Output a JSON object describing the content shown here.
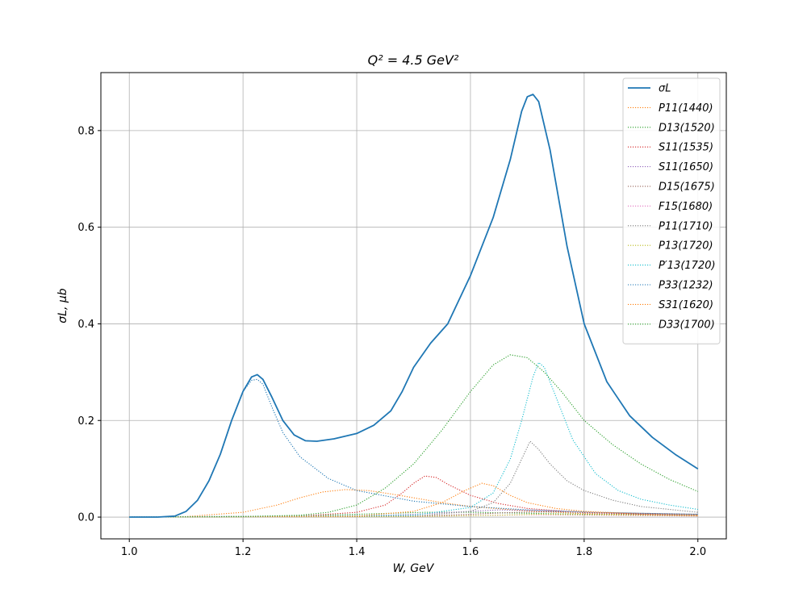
{
  "chart_data": {
    "type": "line",
    "title": "Q² = 4.5 GeV²",
    "xlabel": "W, GeV",
    "ylabel": "σL, μb",
    "xlim": [
      0.95,
      2.05
    ],
    "ylim": [
      -0.045,
      0.92
    ],
    "xticks": [
      "1.0",
      "1.2",
      "1.4",
      "1.6",
      "1.8",
      "2.0"
    ],
    "yticks": [
      "0.0",
      "0.2",
      "0.4",
      "0.6",
      "0.8"
    ],
    "grid": true,
    "legend_position": "top-right",
    "series": [
      {
        "name": "σL",
        "color": "#1f77b4",
        "style": "solid",
        "points": [
          [
            1.0,
            0
          ],
          [
            1.05,
            0
          ],
          [
            1.08,
            0.002
          ],
          [
            1.1,
            0.012
          ],
          [
            1.12,
            0.035
          ],
          [
            1.14,
            0.075
          ],
          [
            1.16,
            0.13
          ],
          [
            1.18,
            0.2
          ],
          [
            1.2,
            0.26
          ],
          [
            1.215,
            0.29
          ],
          [
            1.225,
            0.295
          ],
          [
            1.235,
            0.285
          ],
          [
            1.25,
            0.25
          ],
          [
            1.27,
            0.2
          ],
          [
            1.29,
            0.17
          ],
          [
            1.31,
            0.158
          ],
          [
            1.33,
            0.157
          ],
          [
            1.36,
            0.162
          ],
          [
            1.4,
            0.173
          ],
          [
            1.43,
            0.19
          ],
          [
            1.46,
            0.22
          ],
          [
            1.48,
            0.26
          ],
          [
            1.5,
            0.31
          ],
          [
            1.53,
            0.36
          ],
          [
            1.56,
            0.4
          ],
          [
            1.6,
            0.5
          ],
          [
            1.64,
            0.62
          ],
          [
            1.67,
            0.74
          ],
          [
            1.69,
            0.84
          ],
          [
            1.7,
            0.87
          ],
          [
            1.71,
            0.875
          ],
          [
            1.72,
            0.86
          ],
          [
            1.74,
            0.76
          ],
          [
            1.77,
            0.56
          ],
          [
            1.8,
            0.4
          ],
          [
            1.84,
            0.28
          ],
          [
            1.88,
            0.21
          ],
          [
            1.92,
            0.165
          ],
          [
            1.96,
            0.13
          ],
          [
            2.0,
            0.1
          ]
        ]
      },
      {
        "name": "P11(1440)",
        "color": "#ff7f0e",
        "style": "dotted",
        "points": [
          [
            1.0,
            0
          ],
          [
            1.1,
            0.001
          ],
          [
            1.2,
            0.01
          ],
          [
            1.26,
            0.025
          ],
          [
            1.3,
            0.04
          ],
          [
            1.34,
            0.052
          ],
          [
            1.38,
            0.057
          ],
          [
            1.42,
            0.055
          ],
          [
            1.46,
            0.048
          ],
          [
            1.5,
            0.04
          ],
          [
            1.55,
            0.03
          ],
          [
            1.6,
            0.022
          ],
          [
            1.7,
            0.013
          ],
          [
            1.8,
            0.007
          ],
          [
            2.0,
            0.003
          ]
        ]
      },
      {
        "name": "D13(1520)",
        "color": "#2ca02c",
        "style": "dotted",
        "points": [
          [
            1.0,
            0
          ],
          [
            1.2,
            0.001
          ],
          [
            1.3,
            0.003
          ],
          [
            1.4,
            0.006
          ],
          [
            1.46,
            0.008
          ],
          [
            1.52,
            0.01
          ],
          [
            1.6,
            0.01
          ],
          [
            1.7,
            0.008
          ],
          [
            1.8,
            0.006
          ],
          [
            2.0,
            0.003
          ]
        ]
      },
      {
        "name": "S11(1535)",
        "color": "#d62728",
        "style": "dotted",
        "points": [
          [
            1.0,
            0
          ],
          [
            1.3,
            0.002
          ],
          [
            1.4,
            0.01
          ],
          [
            1.45,
            0.025
          ],
          [
            1.48,
            0.05
          ],
          [
            1.5,
            0.07
          ],
          [
            1.52,
            0.085
          ],
          [
            1.54,
            0.082
          ],
          [
            1.56,
            0.068
          ],
          [
            1.6,
            0.045
          ],
          [
            1.65,
            0.028
          ],
          [
            1.7,
            0.018
          ],
          [
            1.8,
            0.009
          ],
          [
            2.0,
            0.004
          ]
        ]
      },
      {
        "name": "S11(1650)",
        "color": "#9467bd",
        "style": "dotted",
        "points": [
          [
            1.0,
            0
          ],
          [
            1.4,
            0.002
          ],
          [
            1.5,
            0.006
          ],
          [
            1.6,
            0.012
          ],
          [
            1.65,
            0.015
          ],
          [
            1.7,
            0.014
          ],
          [
            1.8,
            0.01
          ],
          [
            1.9,
            0.006
          ],
          [
            2.0,
            0.004
          ]
        ]
      },
      {
        "name": "D15(1675)",
        "color": "#8c564b",
        "style": "dotted",
        "points": [
          [
            1.0,
            0
          ],
          [
            1.5,
            0.002
          ],
          [
            1.6,
            0.006
          ],
          [
            1.68,
            0.01
          ],
          [
            1.75,
            0.011
          ],
          [
            1.85,
            0.009
          ],
          [
            2.0,
            0.006
          ]
        ]
      },
      {
        "name": "F15(1680)",
        "color": "#e377c2",
        "style": "dotted",
        "points": [
          [
            1.0,
            0
          ],
          [
            1.5,
            0.001
          ],
          [
            1.6,
            0.003
          ],
          [
            1.7,
            0.005
          ],
          [
            1.8,
            0.004
          ],
          [
            2.0,
            0.002
          ]
        ]
      },
      {
        "name": "P11(1710)",
        "color": "#7f7f7f",
        "style": "dotted",
        "points": [
          [
            1.0,
            0
          ],
          [
            1.5,
            0.002
          ],
          [
            1.6,
            0.012
          ],
          [
            1.64,
            0.03
          ],
          [
            1.67,
            0.07
          ],
          [
            1.69,
            0.12
          ],
          [
            1.705,
            0.157
          ],
          [
            1.72,
            0.14
          ],
          [
            1.74,
            0.11
          ],
          [
            1.77,
            0.075
          ],
          [
            1.8,
            0.055
          ],
          [
            1.85,
            0.035
          ],
          [
            1.9,
            0.022
          ],
          [
            2.0,
            0.01
          ]
        ]
      },
      {
        "name": "P13(1720)",
        "color": "#bcbd22",
        "style": "dotted",
        "points": [
          [
            1.0,
            0
          ],
          [
            1.5,
            0.001
          ],
          [
            1.65,
            0.004
          ],
          [
            1.72,
            0.006
          ],
          [
            1.8,
            0.005
          ],
          [
            2.0,
            0.003
          ]
        ]
      },
      {
        "name": "P′13(1720)",
        "color": "#17becf",
        "style": "dotted",
        "points": [
          [
            1.0,
            0
          ],
          [
            1.5,
            0.004
          ],
          [
            1.6,
            0.02
          ],
          [
            1.64,
            0.05
          ],
          [
            1.67,
            0.12
          ],
          [
            1.69,
            0.2
          ],
          [
            1.71,
            0.29
          ],
          [
            1.72,
            0.32
          ],
          [
            1.73,
            0.31
          ],
          [
            1.75,
            0.25
          ],
          [
            1.78,
            0.16
          ],
          [
            1.82,
            0.09
          ],
          [
            1.86,
            0.055
          ],
          [
            1.9,
            0.037
          ],
          [
            1.95,
            0.025
          ],
          [
            2.0,
            0.016
          ]
        ]
      },
      {
        "name": "P33(1232)",
        "color": "#1f77b4",
        "style": "dotted",
        "points": [
          [
            1.0,
            0
          ],
          [
            1.05,
            0
          ],
          [
            1.08,
            0.002
          ],
          [
            1.1,
            0.012
          ],
          [
            1.12,
            0.035
          ],
          [
            1.14,
            0.075
          ],
          [
            1.16,
            0.13
          ],
          [
            1.18,
            0.2
          ],
          [
            1.2,
            0.26
          ],
          [
            1.215,
            0.283
          ],
          [
            1.225,
            0.285
          ],
          [
            1.235,
            0.275
          ],
          [
            1.25,
            0.23
          ],
          [
            1.27,
            0.175
          ],
          [
            1.3,
            0.125
          ],
          [
            1.35,
            0.08
          ],
          [
            1.4,
            0.055
          ],
          [
            1.5,
            0.033
          ],
          [
            1.6,
            0.022
          ],
          [
            1.7,
            0.015
          ],
          [
            1.8,
            0.011
          ],
          [
            1.9,
            0.008
          ],
          [
            2.0,
            0.006
          ]
        ]
      },
      {
        "name": "S31(1620)",
        "color": "#ff7f0e",
        "style": "dotted",
        "points": [
          [
            1.0,
            0
          ],
          [
            1.4,
            0.002
          ],
          [
            1.5,
            0.012
          ],
          [
            1.55,
            0.03
          ],
          [
            1.59,
            0.055
          ],
          [
            1.62,
            0.07
          ],
          [
            1.64,
            0.065
          ],
          [
            1.67,
            0.045
          ],
          [
            1.7,
            0.03
          ],
          [
            1.75,
            0.018
          ],
          [
            1.8,
            0.012
          ],
          [
            1.9,
            0.006
          ],
          [
            2.0,
            0.003
          ]
        ]
      },
      {
        "name": "D33(1700)",
        "color": "#2ca02c",
        "style": "dotted",
        "points": [
          [
            1.0,
            0
          ],
          [
            1.2,
            0.001
          ],
          [
            1.3,
            0.004
          ],
          [
            1.35,
            0.01
          ],
          [
            1.4,
            0.025
          ],
          [
            1.45,
            0.06
          ],
          [
            1.5,
            0.11
          ],
          [
            1.55,
            0.18
          ],
          [
            1.6,
            0.26
          ],
          [
            1.64,
            0.315
          ],
          [
            1.67,
            0.336
          ],
          [
            1.7,
            0.33
          ],
          [
            1.73,
            0.3
          ],
          [
            1.76,
            0.26
          ],
          [
            1.8,
            0.2
          ],
          [
            1.85,
            0.15
          ],
          [
            1.9,
            0.11
          ],
          [
            1.95,
            0.078
          ],
          [
            2.0,
            0.053
          ]
        ]
      }
    ]
  }
}
